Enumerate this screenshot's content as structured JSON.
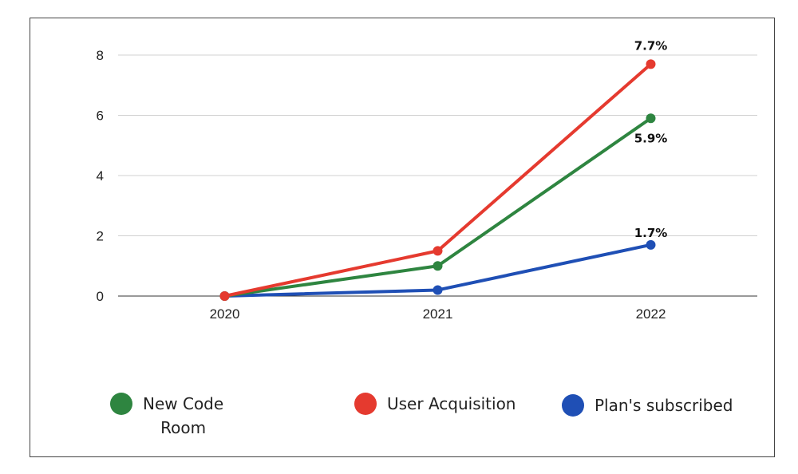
{
  "chart_data": {
    "type": "line",
    "categories": [
      "2020",
      "2021",
      "2022"
    ],
    "ylim": [
      0,
      8
    ],
    "yticks": [
      0,
      2,
      4,
      6,
      8
    ],
    "grid": true,
    "legend_position": "bottom",
    "series": [
      {
        "name": "New Code Room",
        "color": "#2e8540",
        "values": [
          0,
          1.0,
          5.9
        ],
        "data_labels": [
          "",
          "",
          "5.9%"
        ]
      },
      {
        "name": "User Acquisition",
        "color": "#e53a2f",
        "values": [
          0,
          1.5,
          7.7
        ],
        "data_labels": [
          "",
          "",
          "7.7%"
        ]
      },
      {
        "name": "Plan's subscribed",
        "color": "#1f4fb5",
        "values": [
          0,
          0.2,
          1.7
        ],
        "data_labels": [
          "",
          "",
          "1.7%"
        ]
      }
    ]
  },
  "legend": {
    "items": [
      {
        "label_line1": "New Code",
        "label_line2": "Room",
        "color": "#2e8540",
        "icon": "circle-marker"
      },
      {
        "label_line1": "User Acquisition",
        "label_line2": "",
        "color": "#e53a2f",
        "icon": "circle-marker"
      },
      {
        "label_line1": "Plan's subscribed",
        "label_line2": "",
        "color": "#1f4fb5",
        "icon": "circle-marker"
      }
    ]
  }
}
